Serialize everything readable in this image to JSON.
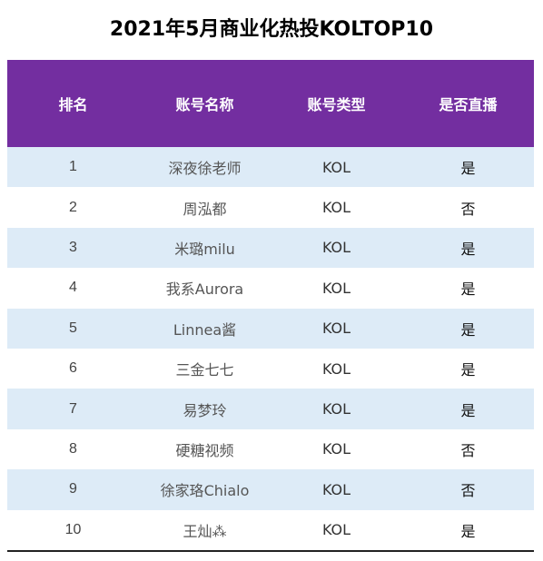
{
  "title": "2021年5月商业化热投KOLTOP10",
  "headers": {
    "rank": "排名",
    "name": "账号名称",
    "type": "账号类型",
    "live": "是否直播"
  },
  "rows": [
    {
      "rank": "1",
      "name": "深夜徐老师",
      "type": "KOL",
      "live": "是"
    },
    {
      "rank": "2",
      "name": "周泓都",
      "type": "KOL",
      "live": "否"
    },
    {
      "rank": "3",
      "name": "米璐milu",
      "type": "KOL",
      "live": "是"
    },
    {
      "rank": "4",
      "name": "我系Aurora",
      "type": "KOL",
      "live": "是"
    },
    {
      "rank": "5",
      "name": "Linnea酱",
      "type": "KOL",
      "live": "是"
    },
    {
      "rank": "6",
      "name": "三金七七",
      "type": "KOL",
      "live": "是"
    },
    {
      "rank": "7",
      "name": "易梦玲",
      "type": "KOL",
      "live": "是"
    },
    {
      "rank": "8",
      "name": "硬糖视频",
      "type": "KOL",
      "live": "否"
    },
    {
      "rank": "9",
      "name": "徐家珞Chialo",
      "type": "KOL",
      "live": "否"
    },
    {
      "rank": "10",
      "name": "王灿⁂",
      "type": "KOL",
      "live": "是"
    }
  ],
  "colors": {
    "header_bg": "#732ea0",
    "stripe_bg": "#ddebf7"
  }
}
